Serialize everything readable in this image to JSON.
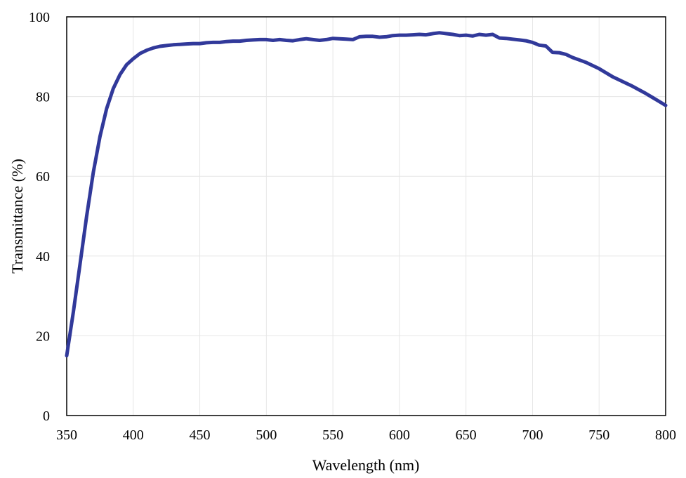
{
  "chart_data": {
    "type": "line",
    "title": "",
    "xlabel": "Wavelength (nm)",
    "ylabel": "Transmittance (%)",
    "xlim": [
      350,
      800
    ],
    "ylim": [
      0,
      100
    ],
    "xticks": [
      350,
      400,
      450,
      500,
      550,
      600,
      650,
      700,
      750,
      800
    ],
    "yticks": [
      0,
      20,
      40,
      60,
      80,
      100
    ],
    "grid": true,
    "legend": "none",
    "colors": {
      "series": "#31399a",
      "grid": "#e6e6e6",
      "frame": "#000000"
    },
    "series": [
      {
        "x": [
          350,
          355,
          360,
          365,
          370,
          375,
          380,
          385,
          390,
          395,
          400,
          405,
          410,
          415,
          420,
          425,
          430,
          435,
          440,
          445,
          450,
          455,
          460,
          465,
          470,
          475,
          480,
          485,
          490,
          495,
          500,
          505,
          510,
          515,
          520,
          525,
          530,
          535,
          540,
          545,
          550,
          555,
          560,
          565,
          570,
          575,
          580,
          585,
          590,
          595,
          600,
          605,
          610,
          615,
          620,
          625,
          630,
          635,
          640,
          645,
          650,
          655,
          660,
          665,
          670,
          675,
          680,
          685,
          690,
          695,
          700,
          705,
          710,
          715,
          720,
          725,
          730,
          735,
          740,
          745,
          750,
          755,
          760,
          765,
          770,
          775,
          780,
          785,
          790,
          795,
          800
        ],
        "y": [
          15,
          26,
          38,
          50,
          61,
          70,
          77,
          82,
          85.5,
          88,
          89.5,
          90.8,
          91.6,
          92.2,
          92.6,
          92.8,
          93,
          93.1,
          93.2,
          93.3,
          93.3,
          93.5,
          93.6,
          93.6,
          93.8,
          93.9,
          93.9,
          94.1,
          94.2,
          94.3,
          94.3,
          94.1,
          94.3,
          94.1,
          94.0,
          94.3,
          94.5,
          94.3,
          94.1,
          94.3,
          94.6,
          94.5,
          94.4,
          94.3,
          95.0,
          95.1,
          95.1,
          94.9,
          95.0,
          95.3,
          95.4,
          95.4,
          95.5,
          95.6,
          95.5,
          95.8,
          96.0,
          95.8,
          95.6,
          95.3,
          95.4,
          95.2,
          95.6,
          95.4,
          95.6,
          94.7,
          94.6,
          94.4,
          94.2,
          94.0,
          93.6,
          92.9,
          92.7,
          91.1,
          91.0,
          90.6,
          89.8,
          89.2,
          88.6,
          87.8,
          87.0,
          86.0,
          85.0,
          84.2,
          83.4,
          82.6,
          81.7,
          80.8,
          79.8,
          78.8,
          77.8
        ]
      }
    ]
  }
}
